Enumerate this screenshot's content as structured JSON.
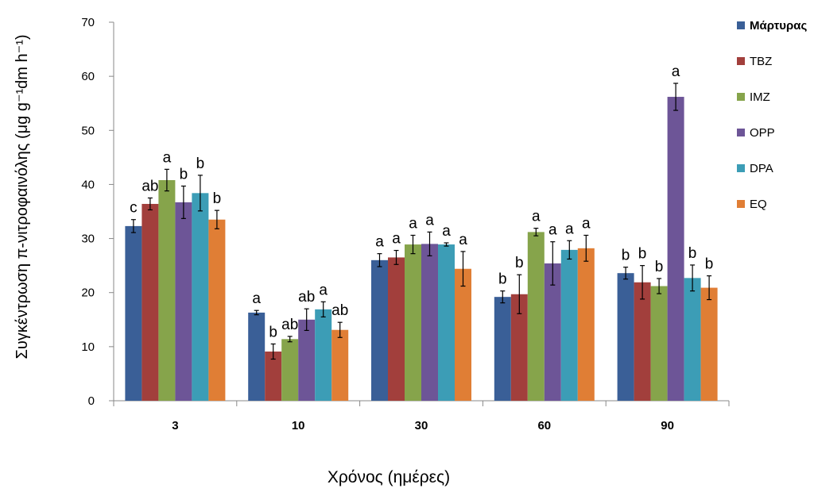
{
  "chart_data": {
    "type": "bar",
    "title": "",
    "xlabel": "Χρόνος (ημέρες)",
    "ylabel": "Συγκέντρωση π-νιτροφαινόλης (μg g⁻¹dm h⁻¹)",
    "ylim": [
      0,
      70
    ],
    "yticks": [
      0,
      10,
      20,
      30,
      40,
      50,
      60,
      70
    ],
    "categories": [
      "3",
      "10",
      "30",
      "60",
      "90"
    ],
    "legend_position": "right",
    "grid": false,
    "series": [
      {
        "name": "Μάρτυρας",
        "color": "#3a5f97",
        "values": [
          32.3,
          16.3,
          26.0,
          19.2,
          23.6
        ],
        "errors": [
          1.2,
          0.4,
          1.2,
          1.1,
          1.1
        ],
        "labels": [
          "c",
          "a",
          "a",
          "b",
          "b"
        ]
      },
      {
        "name": "TBZ",
        "color": "#a23f3c",
        "values": [
          36.4,
          9.1,
          26.5,
          19.7,
          21.9
        ],
        "errors": [
          1.1,
          1.4,
          1.3,
          3.6,
          3.1
        ],
        "labels": [
          "ab",
          "b",
          "a",
          "b",
          "b"
        ]
      },
      {
        "name": "IMZ",
        "color": "#86a44b",
        "values": [
          40.8,
          11.4,
          28.9,
          31.2,
          21.2
        ],
        "errors": [
          2.0,
          0.5,
          1.7,
          0.7,
          1.4
        ],
        "labels": [
          "a",
          "ab",
          "a",
          "a",
          "b"
        ]
      },
      {
        "name": "OPP",
        "color": "#6d5597",
        "values": [
          36.7,
          15.0,
          29.0,
          25.4,
          56.2
        ],
        "errors": [
          3.0,
          2.0,
          2.2,
          4.0,
          2.5
        ],
        "labels": [
          "b",
          "ab",
          "a",
          "a",
          "a"
        ]
      },
      {
        "name": "DPA",
        "color": "#3c9db6",
        "values": [
          38.4,
          16.9,
          28.9,
          27.9,
          22.7
        ],
        "errors": [
          3.3,
          1.4,
          0.3,
          1.7,
          2.4
        ],
        "labels": [
          "b",
          "a",
          "a",
          "a",
          "b"
        ]
      },
      {
        "name": "EQ",
        "color": "#e07e35",
        "values": [
          33.5,
          13.1,
          24.4,
          28.2,
          20.9
        ],
        "errors": [
          1.7,
          1.4,
          3.2,
          2.4,
          2.2
        ],
        "labels": [
          "b",
          "ab",
          "a",
          "a",
          "b"
        ]
      }
    ]
  }
}
